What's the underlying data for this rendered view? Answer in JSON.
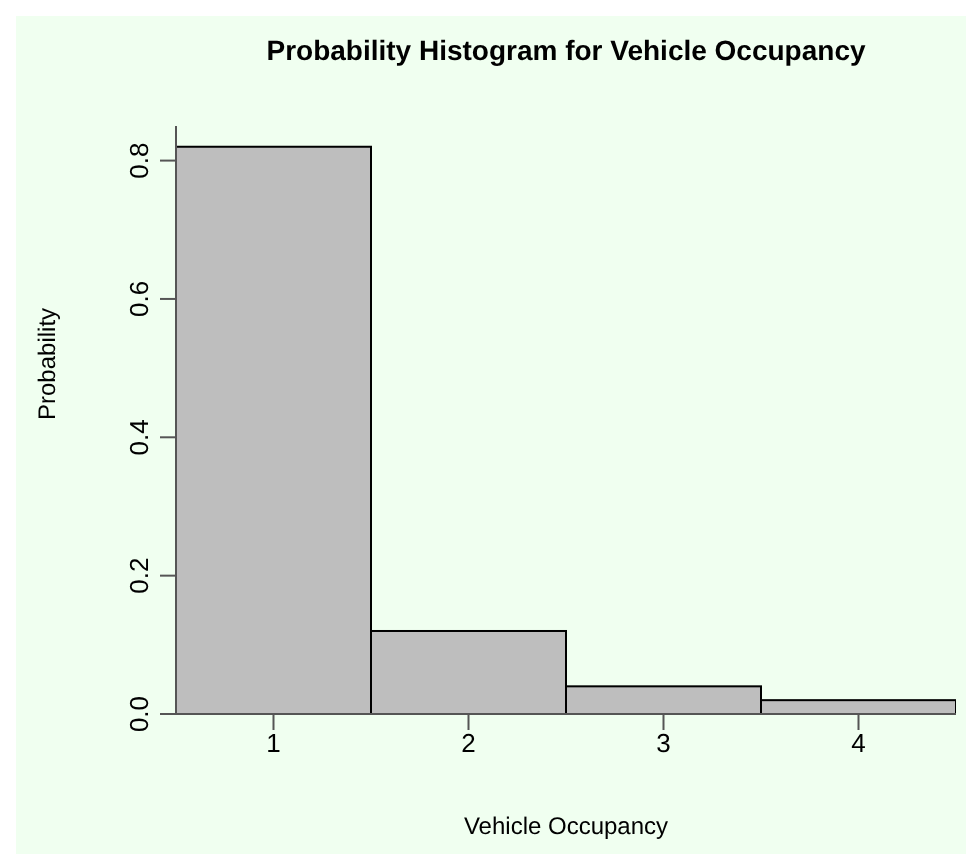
{
  "chart_data": {
    "type": "histogram",
    "title": "Probability Histogram for Vehicle Occupancy",
    "xlabel": "Vehicle Occupancy",
    "ylabel": "Probability",
    "bins": [
      0.5,
      1.5,
      2.5,
      3.5,
      4.5
    ],
    "values": [
      0.82,
      0.12,
      0.04,
      0.02
    ],
    "color": "#bebebe",
    "xlim": [
      0.5,
      4.5
    ],
    "xticks": [
      1,
      2,
      3,
      4
    ],
    "ylim": [
      0,
      0.85
    ],
    "yticks": [
      {
        "value": 0,
        "label": "0.0"
      },
      {
        "value": 0.2,
        "label": "0.2"
      },
      {
        "value": 0.4,
        "label": "0.4"
      },
      {
        "value": 0.6,
        "label": "0.6"
      },
      {
        "value": 0.8,
        "label": "0.8"
      }
    ]
  }
}
